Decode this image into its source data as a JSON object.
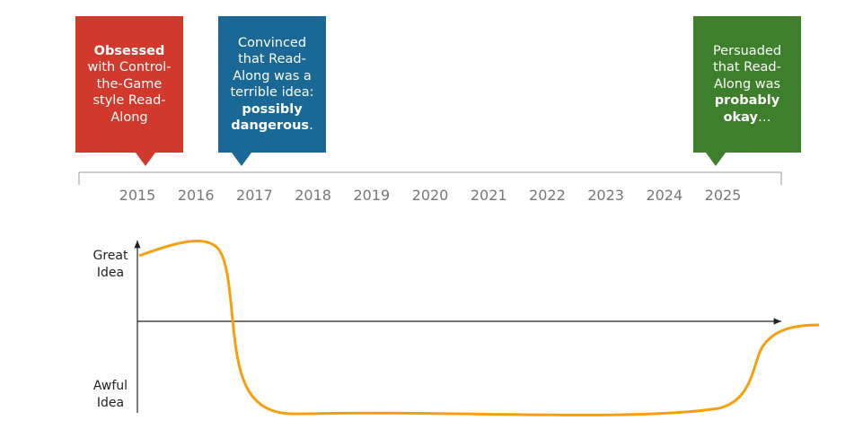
{
  "callouts": [
    {
      "color": "#d0392b",
      "parts": [
        {
          "text": "Obsessed",
          "bold": true
        },
        {
          "text": " with Control-the-Game style Read-Along",
          "bold": false
        }
      ]
    },
    {
      "color": "#1a6896",
      "parts": [
        {
          "text": "Convinced that Read-Along was a terrible idea: ",
          "bold": false
        },
        {
          "text": "possibly dangerous",
          "bold": true
        },
        {
          "text": ".",
          "bold": false
        }
      ]
    },
    {
      "color": "#3d7f2a",
      "parts": [
        {
          "text": "Persuaded that Read-Along was ",
          "bold": false
        },
        {
          "text": "probably okay",
          "bold": true
        },
        {
          "text": "…",
          "bold": false
        }
      ]
    }
  ],
  "timeline": {
    "years": [
      "2015",
      "2016",
      "2017",
      "2018",
      "2019",
      "2020",
      "2021",
      "2022",
      "2023",
      "2024",
      "2025"
    ]
  },
  "graph": {
    "top_label": "Great Idea",
    "bottom_label": "Awful Idea"
  }
}
